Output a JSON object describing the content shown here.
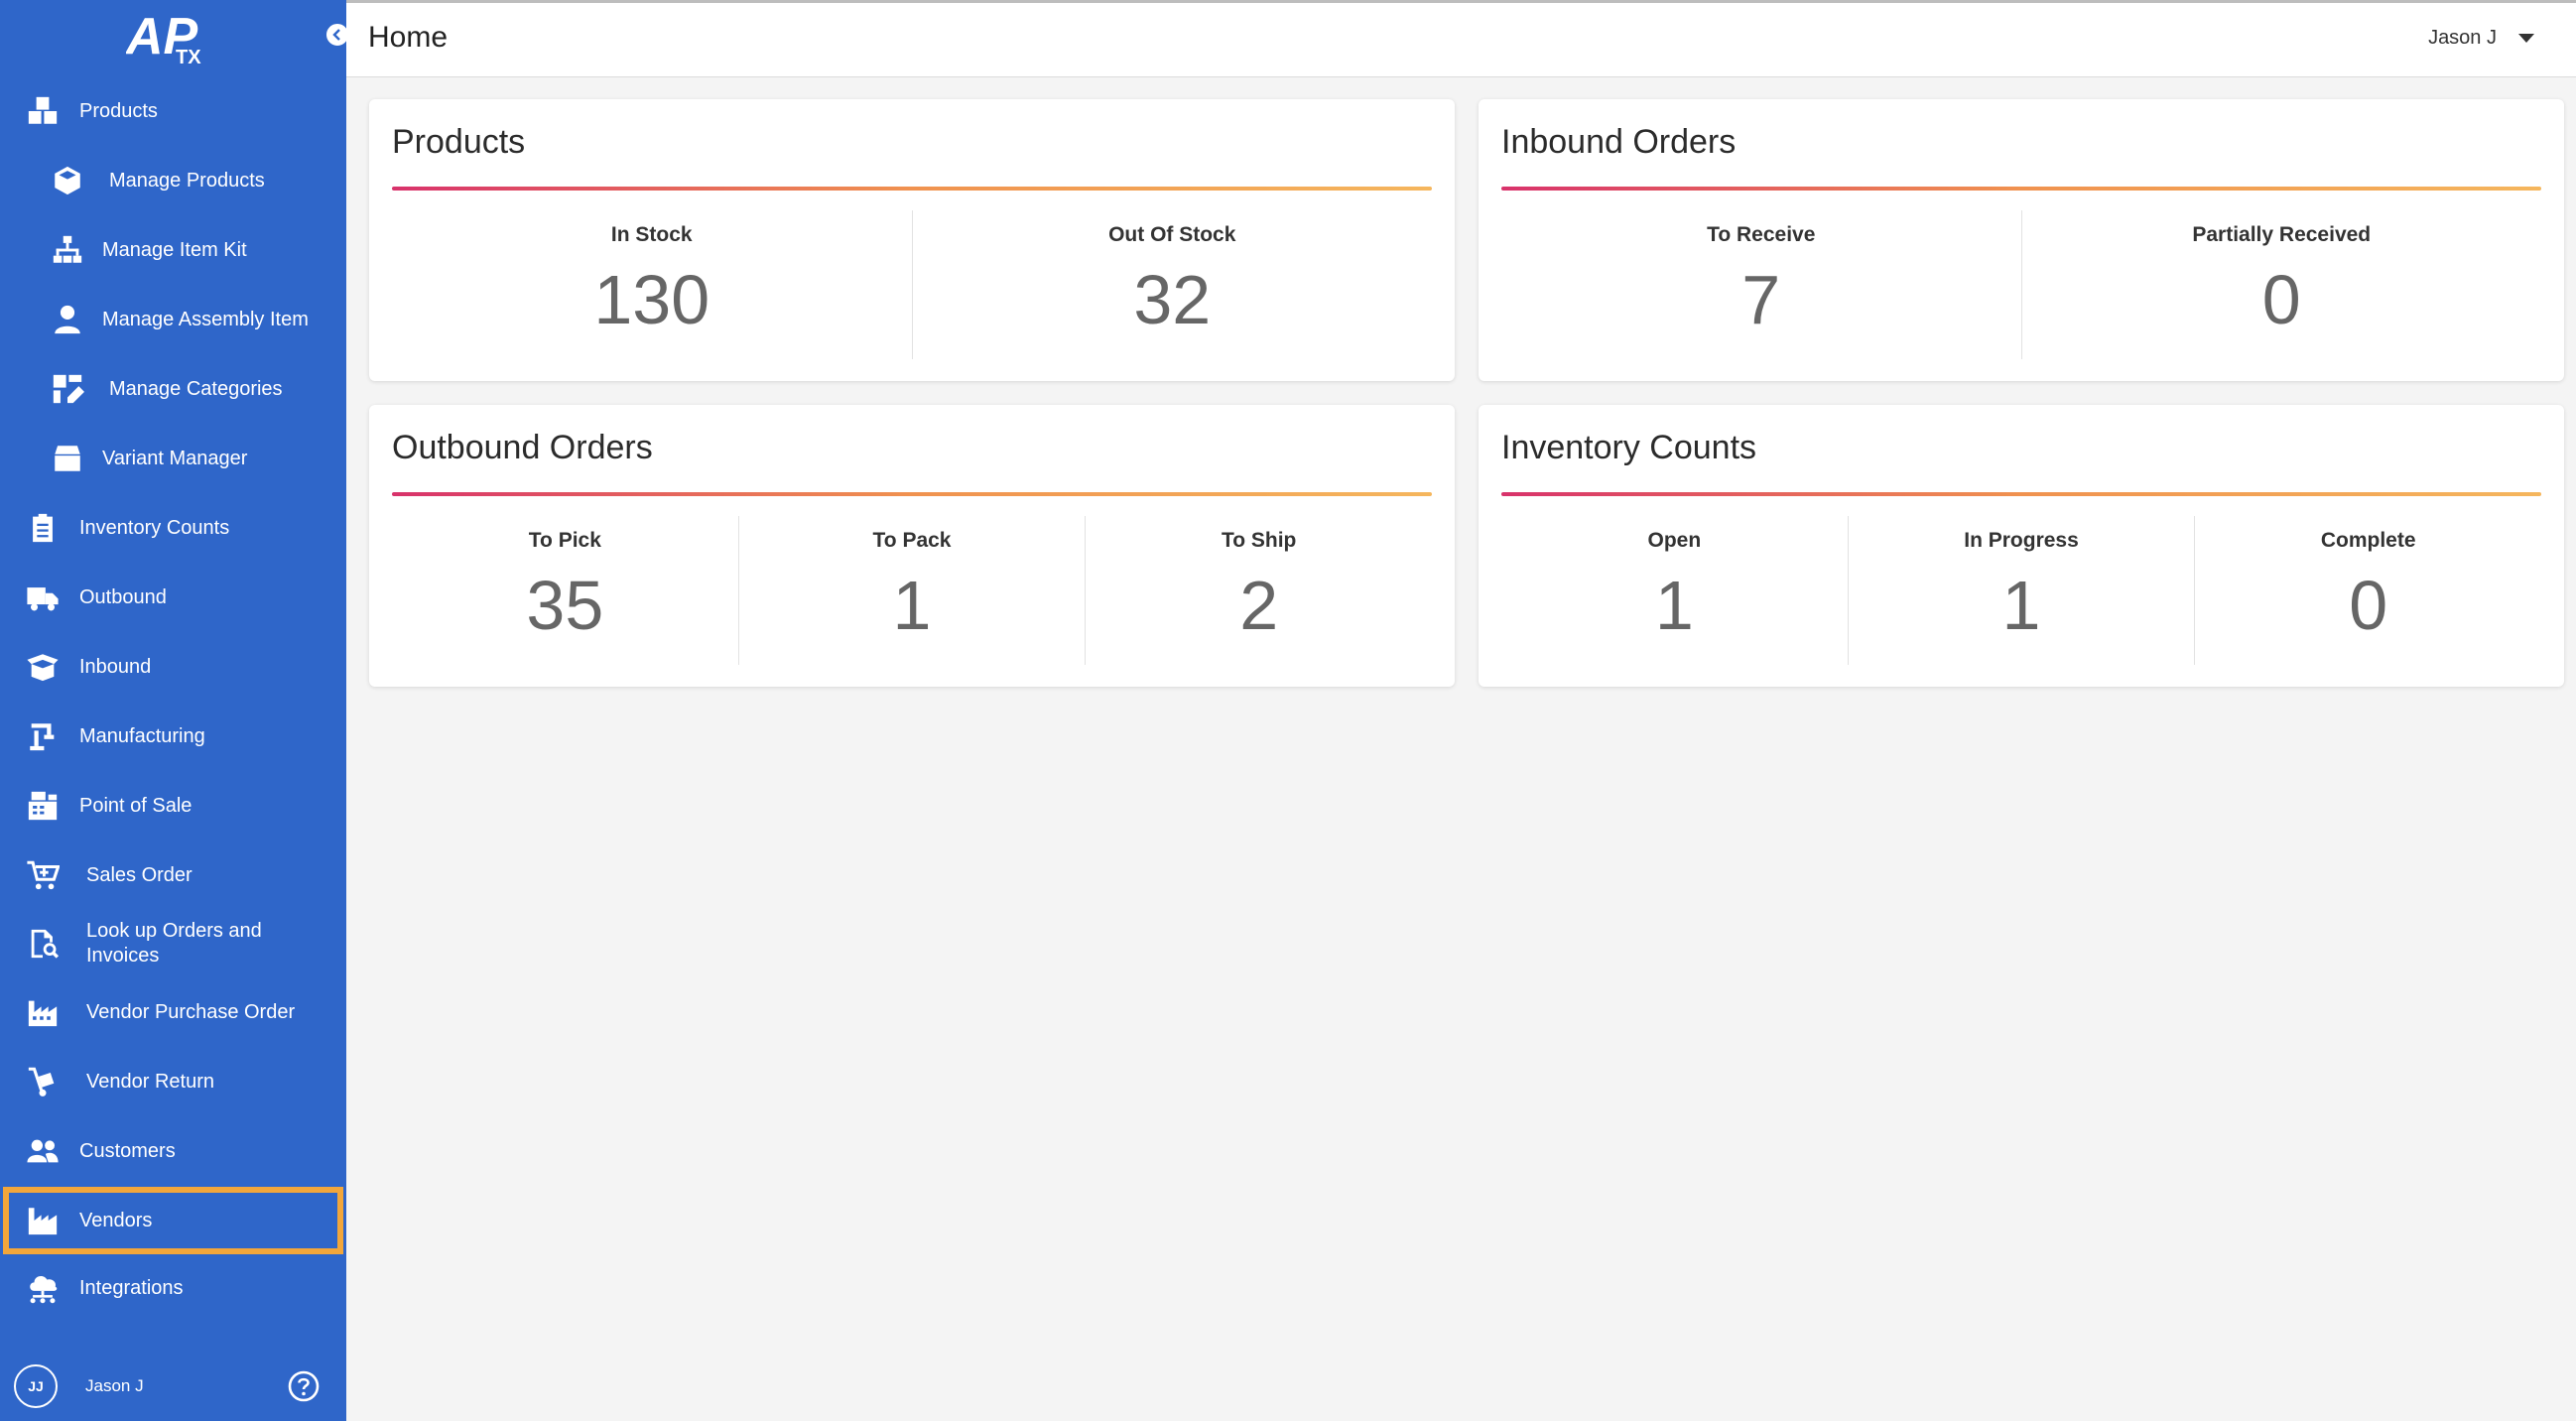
{
  "app": {
    "logo_text": "APTX"
  },
  "header": {
    "title": "Home",
    "user_name": "Jason J"
  },
  "sidebar": {
    "items": [
      {
        "label": "Products",
        "icon": "boxes-icon"
      },
      {
        "label": "Manage Products",
        "icon": "cube-icon"
      },
      {
        "label": "Manage Item Kit",
        "icon": "sitemap-icon"
      },
      {
        "label": "Manage Assembly Item",
        "icon": "user-icon"
      },
      {
        "label": "Manage Categories",
        "icon": "categories-icon"
      },
      {
        "label": "Variant Manager",
        "icon": "box-icon"
      },
      {
        "label": "Inventory Counts",
        "icon": "clipboard-icon"
      },
      {
        "label": "Outbound",
        "icon": "truck-icon"
      },
      {
        "label": "Inbound",
        "icon": "open-box-icon"
      },
      {
        "label": "Manufacturing",
        "icon": "robot-arm-icon"
      },
      {
        "label": "Point of Sale",
        "icon": "cash-register-icon"
      },
      {
        "label": "Sales Order",
        "icon": "cart-icon"
      },
      {
        "label": "Look up Orders and Invoices",
        "icon": "document-search-icon"
      },
      {
        "label": "Vendor Purchase Order",
        "icon": "factory-icon"
      },
      {
        "label": "Vendor Return",
        "icon": "dolly-icon"
      },
      {
        "label": "Customers",
        "icon": "users-icon"
      },
      {
        "label": "Vendors",
        "icon": "industry-icon"
      },
      {
        "label": "Integrations",
        "icon": "cloud-network-icon"
      }
    ],
    "selected": "Vendors",
    "footer": {
      "initials": "JJ",
      "name": "Jason J"
    }
  },
  "cards": {
    "products": {
      "title": "Products",
      "metrics": [
        {
          "label": "In Stock",
          "value": "130"
        },
        {
          "label": "Out Of Stock",
          "value": "32"
        }
      ]
    },
    "inbound": {
      "title": "Inbound Orders",
      "metrics": [
        {
          "label": "To Receive",
          "value": "7"
        },
        {
          "label": "Partially Received",
          "value": "0"
        }
      ]
    },
    "outbound": {
      "title": "Outbound Orders",
      "metrics": [
        {
          "label": "To Pick",
          "value": "35"
        },
        {
          "label": "To Pack",
          "value": "1"
        },
        {
          "label": "To Ship",
          "value": "2"
        }
      ]
    },
    "inventory": {
      "title": "Inventory Counts",
      "metrics": [
        {
          "label": "Open",
          "value": "1"
        },
        {
          "label": "In Progress",
          "value": "1"
        },
        {
          "label": "Complete",
          "value": "0"
        }
      ]
    }
  },
  "colors": {
    "sidebar": "#2f66c9",
    "selected_outline": "#f2a63b",
    "rule_start": "#d8326b",
    "rule_end": "#f5b65d"
  }
}
